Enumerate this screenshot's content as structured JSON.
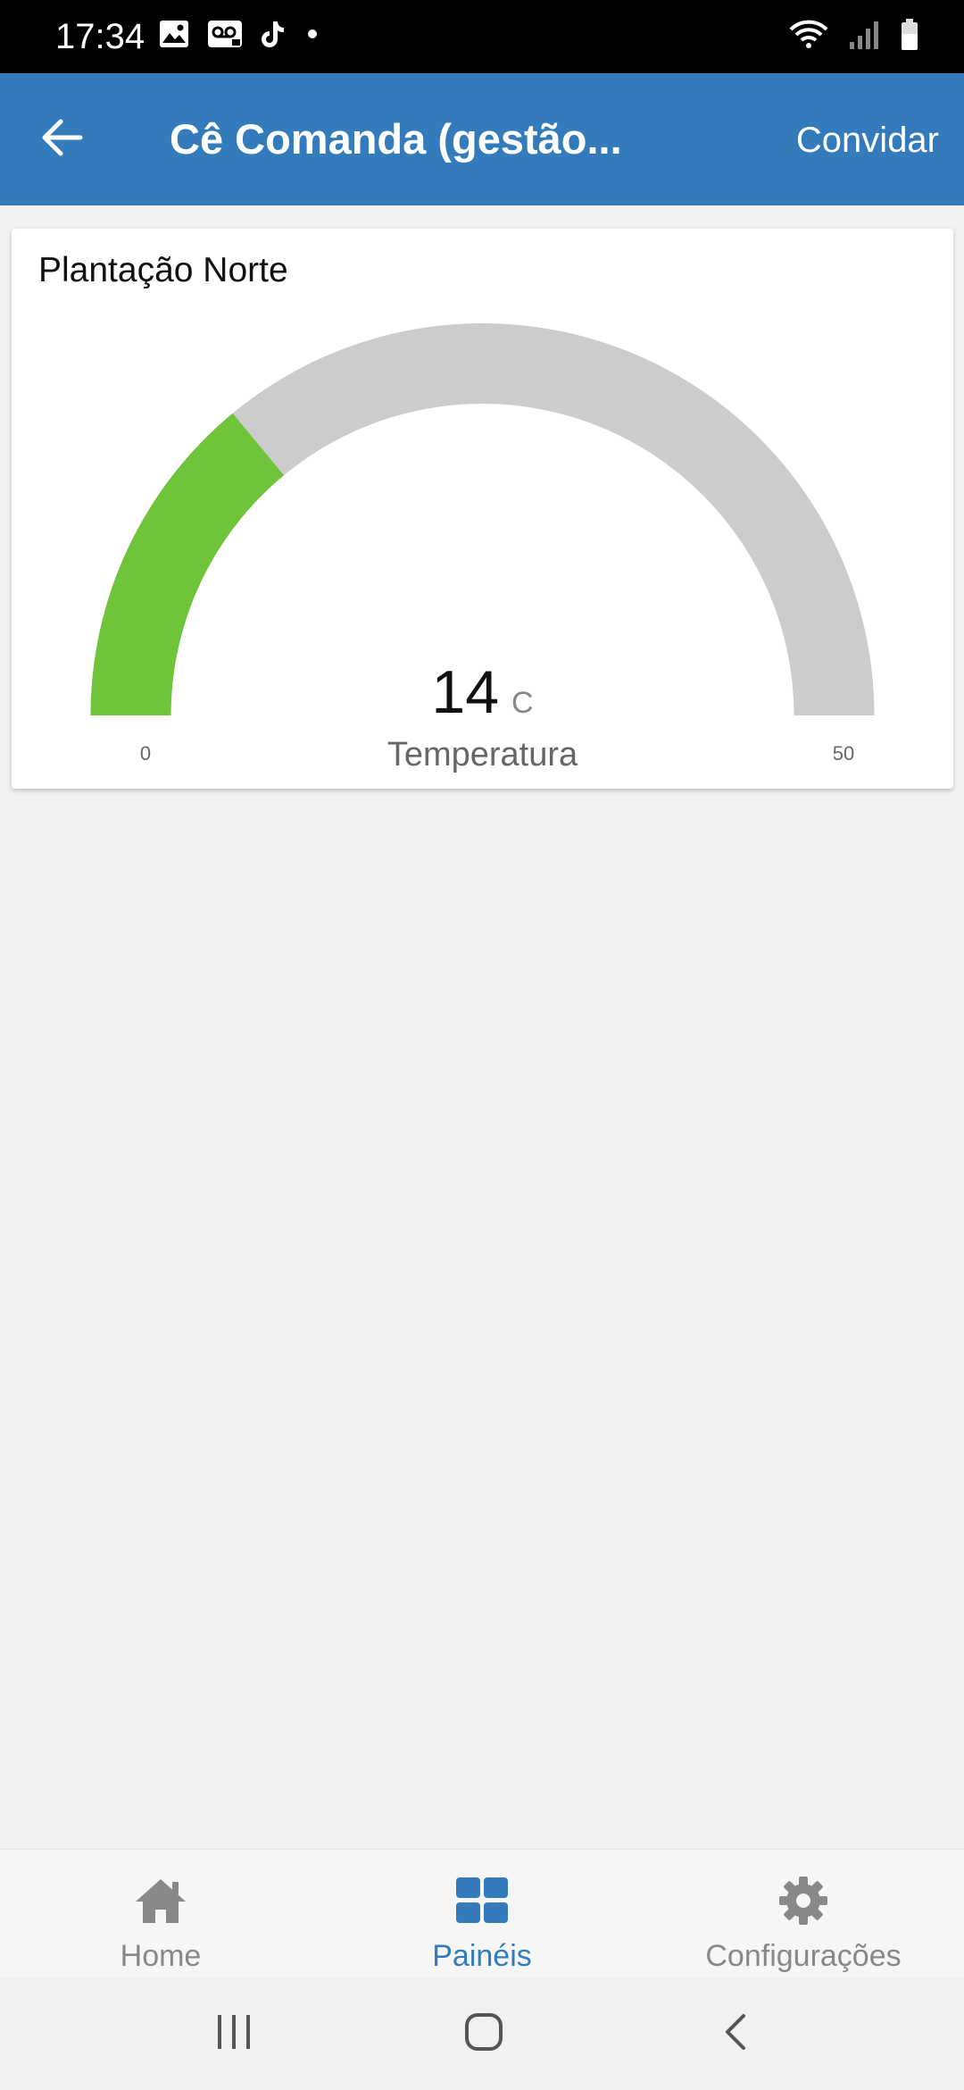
{
  "status_bar": {
    "time": "17:34",
    "left_icons": [
      "image-icon",
      "voicemail-icon",
      "tiktok-icon",
      "dot-icon"
    ],
    "right_icons": [
      "wifi-icon",
      "signal-icon",
      "battery-icon"
    ]
  },
  "app_bar": {
    "title": "Cê Comanda (gestão...",
    "invite_label": "Convidar",
    "back_icon": "arrow-left-icon"
  },
  "card": {
    "title": "Plantação Norte",
    "gauge": {
      "value": "14",
      "unit": "C",
      "label": "Temperatura",
      "min": "0",
      "max": "50",
      "fill_fraction": 0.28,
      "fill_color": "#6fc43a",
      "track_color": "#cccccc"
    }
  },
  "bottom_nav": {
    "items": [
      {
        "label": "Home",
        "icon": "home-icon",
        "active": false
      },
      {
        "label": "Painéis",
        "icon": "dashboard-icon",
        "active": true
      },
      {
        "label": "Configurações",
        "icon": "gear-icon",
        "active": false
      }
    ],
    "active_color": "#347bbb",
    "inactive_color": "#888888"
  },
  "system_nav": {
    "buttons": [
      "recent-apps-icon",
      "home-circle-icon",
      "back-chevron-icon"
    ]
  },
  "colors": {
    "app_bar": "#347bbb",
    "background": "#f2f2f2"
  }
}
